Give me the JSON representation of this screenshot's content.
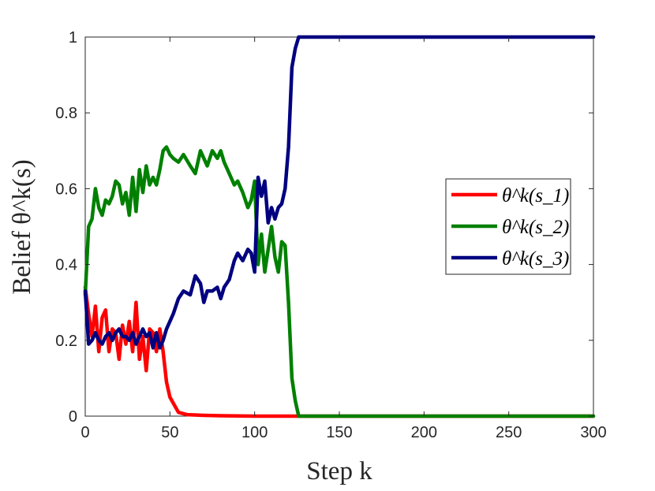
{
  "chart_data": {
    "type": "line",
    "title": "",
    "xlabel": "Step k",
    "ylabel": "Belief θ^k(s)",
    "xlim": [
      0,
      300
    ],
    "ylim": [
      0,
      1
    ],
    "xticks": [
      "0",
      "50",
      "100",
      "150",
      "200",
      "250",
      "300"
    ],
    "yticks": [
      "0",
      "0.2",
      "0.4",
      "0.6",
      "0.8",
      "1"
    ],
    "grid": false,
    "legend_position": "right",
    "series": [
      {
        "name": "θ^k(s_1)",
        "color": "#ff0000",
        "x": [
          0,
          2,
          4,
          6,
          8,
          10,
          12,
          14,
          16,
          18,
          20,
          22,
          24,
          26,
          28,
          30,
          32,
          34,
          36,
          38,
          40,
          42,
          44,
          46,
          48,
          50,
          55,
          60,
          70,
          80,
          100,
          120,
          127,
          150,
          200,
          250,
          300
        ],
        "y": [
          0.34,
          0.27,
          0.21,
          0.29,
          0.17,
          0.26,
          0.28,
          0.17,
          0.23,
          0.22,
          0.15,
          0.24,
          0.19,
          0.25,
          0.17,
          0.3,
          0.15,
          0.21,
          0.12,
          0.23,
          0.22,
          0.17,
          0.23,
          0.17,
          0.09,
          0.05,
          0.01,
          0.004,
          0.002,
          0.001,
          0.0,
          0.0,
          0.0,
          0.0,
          0.0,
          0.0,
          0.0
        ]
      },
      {
        "name": "θ^k(s_2)",
        "color": "#008000",
        "x": [
          0,
          2,
          4,
          6,
          8,
          10,
          12,
          14,
          16,
          18,
          20,
          22,
          24,
          26,
          28,
          30,
          32,
          34,
          36,
          38,
          40,
          42,
          44,
          46,
          48,
          50,
          52,
          55,
          58,
          62,
          65,
          68,
          70,
          72,
          75,
          78,
          80,
          82,
          85,
          88,
          90,
          93,
          96,
          98,
          100,
          102,
          104,
          106,
          108,
          110,
          112,
          114,
          116,
          118,
          120,
          122,
          124,
          126,
          128,
          150,
          200,
          250,
          300
        ],
        "y": [
          0.32,
          0.5,
          0.52,
          0.6,
          0.55,
          0.53,
          0.57,
          0.56,
          0.58,
          0.62,
          0.61,
          0.56,
          0.59,
          0.53,
          0.63,
          0.54,
          0.65,
          0.59,
          0.66,
          0.61,
          0.63,
          0.61,
          0.65,
          0.7,
          0.71,
          0.69,
          0.68,
          0.67,
          0.69,
          0.66,
          0.64,
          0.7,
          0.68,
          0.66,
          0.7,
          0.68,
          0.7,
          0.67,
          0.64,
          0.61,
          0.62,
          0.59,
          0.55,
          0.57,
          0.62,
          0.4,
          0.48,
          0.38,
          0.44,
          0.5,
          0.42,
          0.38,
          0.46,
          0.45,
          0.3,
          0.1,
          0.04,
          0.0,
          0.0,
          0.0,
          0.0,
          0.0,
          0.0
        ]
      },
      {
        "name": "θ^k(s_3)",
        "color": "#000080",
        "x": [
          0,
          2,
          4,
          6,
          8,
          10,
          12,
          14,
          16,
          18,
          20,
          22,
          24,
          26,
          28,
          30,
          32,
          34,
          36,
          38,
          40,
          42,
          44,
          46,
          48,
          50,
          52,
          55,
          58,
          62,
          65,
          68,
          70,
          72,
          75,
          78,
          80,
          82,
          85,
          88,
          90,
          93,
          96,
          98,
          100,
          102,
          104,
          106,
          108,
          110,
          112,
          114,
          116,
          118,
          120,
          122,
          124,
          126,
          128,
          150,
          200,
          250,
          300
        ],
        "y": [
          0.33,
          0.19,
          0.2,
          0.22,
          0.2,
          0.19,
          0.21,
          0.22,
          0.2,
          0.22,
          0.23,
          0.21,
          0.21,
          0.2,
          0.22,
          0.19,
          0.21,
          0.23,
          0.21,
          0.22,
          0.18,
          0.22,
          0.18,
          0.2,
          0.23,
          0.25,
          0.27,
          0.31,
          0.33,
          0.32,
          0.37,
          0.35,
          0.3,
          0.33,
          0.33,
          0.34,
          0.31,
          0.34,
          0.36,
          0.41,
          0.43,
          0.41,
          0.44,
          0.43,
          0.38,
          0.63,
          0.58,
          0.62,
          0.51,
          0.55,
          0.52,
          0.55,
          0.56,
          0.6,
          0.71,
          0.92,
          0.97,
          1.0,
          1.0,
          1.0,
          1.0,
          1.0,
          1.0
        ]
      }
    ]
  }
}
